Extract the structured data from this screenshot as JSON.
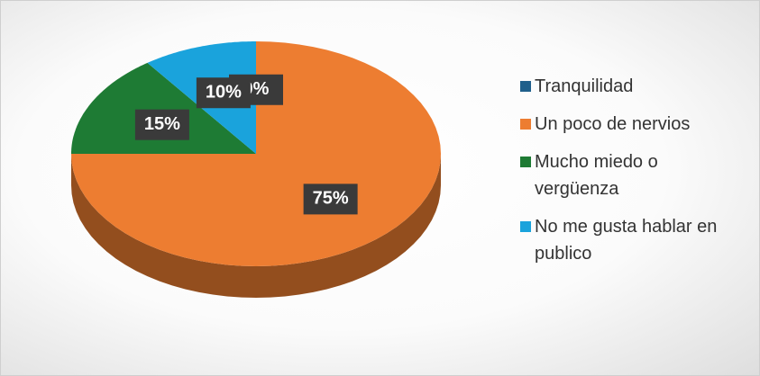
{
  "chart_data": {
    "type": "pie",
    "categories": [
      "Tranquilidad",
      "Un poco de nervios",
      "Mucho miedo o vergüenza",
      "No me gusta hablar en publico"
    ],
    "values": [
      0,
      75,
      15,
      10
    ],
    "value_labels": [
      "0%",
      "75%",
      "15%",
      "10%"
    ],
    "colors": [
      "#1f5f8b",
      "#ed7d31",
      "#1e7b34",
      "#1aa3dc"
    ],
    "legend": "right"
  }
}
